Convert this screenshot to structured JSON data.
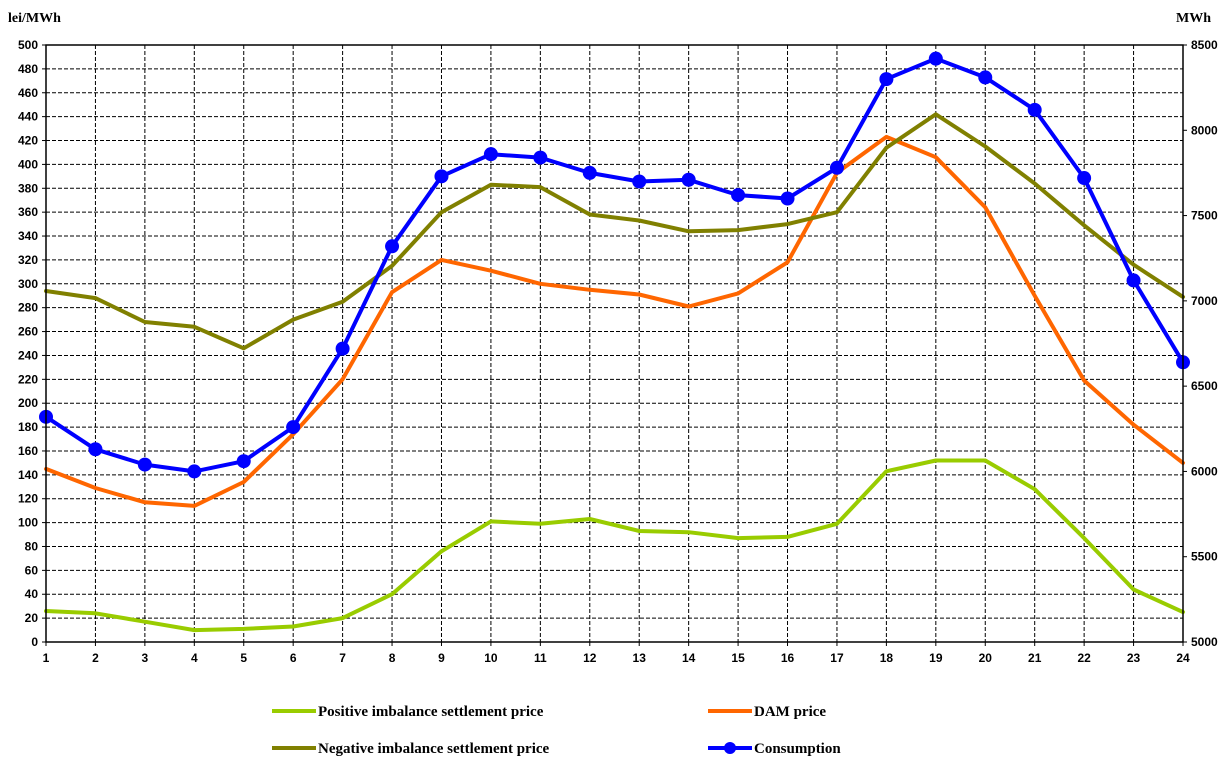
{
  "chart_data": {
    "type": "line",
    "left_axis_unit": "lei/MWh",
    "right_axis_unit": "MWh",
    "x": [
      1,
      2,
      3,
      4,
      5,
      6,
      7,
      8,
      9,
      10,
      11,
      12,
      13,
      14,
      15,
      16,
      17,
      18,
      19,
      20,
      21,
      22,
      23,
      24
    ],
    "ylim_left": [
      0,
      500
    ],
    "yticks_left": [
      0,
      20,
      40,
      60,
      80,
      100,
      120,
      140,
      160,
      180,
      200,
      220,
      240,
      260,
      280,
      300,
      320,
      340,
      360,
      380,
      400,
      420,
      440,
      460,
      480,
      500
    ],
    "ylim_right": [
      5000,
      8500
    ],
    "yticks_right": [
      5000,
      5500,
      6000,
      6500,
      7000,
      7500,
      8000,
      8500
    ],
    "grid": true,
    "legend_position": "bottom",
    "series": [
      {
        "name": "Positive imbalance settlement price",
        "axis": "left",
        "color": "#99CC00",
        "marker": false,
        "values": [
          26,
          24,
          17,
          10,
          11,
          13,
          20,
          40,
          76,
          101,
          99,
          103,
          93,
          92,
          87,
          88,
          99,
          143,
          152,
          152,
          128,
          87,
          44,
          25
        ]
      },
      {
        "name": "DAM price",
        "axis": "left",
        "color": "#FF6600",
        "marker": false,
        "values": [
          145,
          129,
          117,
          114,
          134,
          174,
          220,
          293,
          320,
          311,
          300,
          295,
          291,
          281,
          292,
          318,
          393,
          423,
          406,
          364,
          290,
          219,
          182,
          150
        ]
      },
      {
        "name": "Negative imbalance settlement price",
        "axis": "left",
        "color": "#808000",
        "marker": false,
        "values": [
          294,
          288,
          268,
          264,
          246,
          270,
          285,
          315,
          360,
          383,
          381,
          358,
          353,
          344,
          345,
          350,
          360,
          414,
          442,
          415,
          384,
          349,
          316,
          289
        ]
      },
      {
        "name": "Consumption",
        "axis": "right",
        "color": "#0000FF",
        "marker": true,
        "values": [
          6320,
          6130,
          6040,
          6000,
          6060,
          6260,
          6720,
          7320,
          7730,
          7860,
          7840,
          7750,
          7700,
          7710,
          7620,
          7600,
          7780,
          8300,
          8420,
          8310,
          8120,
          7720,
          7120,
          6640
        ]
      }
    ]
  }
}
